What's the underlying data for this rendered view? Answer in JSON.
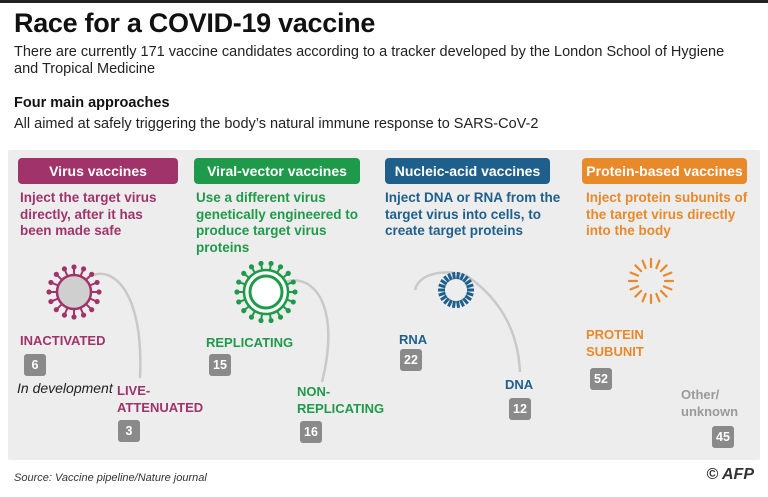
{
  "header": {
    "title": "Race for a COVID-19 vaccine",
    "subtitle": "There are currently 171 vaccine candidates according to a tracker developed by the London School of Hygiene and Tropical Medicine",
    "section_title": "Four main approaches",
    "section_sub": "All aimed at safely triggering the body’s natural immune response to SARS-CoV-2"
  },
  "approaches": [
    {
      "name": "Virus vaccines",
      "color": "#a0336a",
      "description": "Inject the target virus directly, after it has been made safe",
      "types": [
        {
          "label": "INACTIVATED",
          "count": "6"
        },
        {
          "label": "LIVE-ATTENUATED",
          "count": "3"
        }
      ]
    },
    {
      "name": "Viral-vector vaccines",
      "color": "#1f9a4a",
      "description": "Use a different virus genetically engineered to produce target virus proteins",
      "types": [
        {
          "label": "REPLICATING",
          "count": "15"
        },
        {
          "label": "NON-REPLICATING",
          "count": "16"
        }
      ]
    },
    {
      "name": "Nucleic-acid vaccines",
      "color": "#1f5f8b",
      "description": "Inject DNA or RNA from the target virus into cells, to create target proteins",
      "types": [
        {
          "label": "RNA",
          "count": "22"
        },
        {
          "label": "DNA",
          "count": "12"
        }
      ]
    },
    {
      "name": "Protein-based vaccines",
      "color": "#e8892a",
      "description": "Inject protein subunits of the target virus directly into the body",
      "types": [
        {
          "label": "PROTEIN SUBUNIT",
          "count": "52"
        }
      ]
    }
  ],
  "other": {
    "label": "Other/ unknown",
    "count": "45",
    "color": "#9a9a9a"
  },
  "note": "In development",
  "footer": {
    "source": "Source: Vaccine pipeline/Nature journal",
    "logo": "© AFP"
  }
}
